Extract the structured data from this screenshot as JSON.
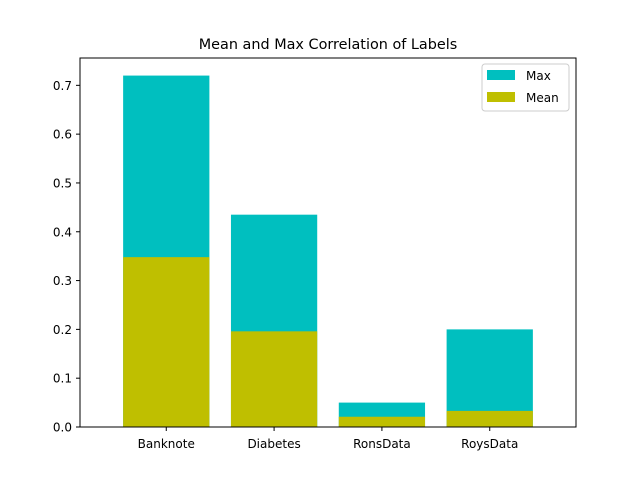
{
  "chart_data": {
    "type": "bar",
    "title": "Mean and Max Correlation of Labels",
    "xlabel": "",
    "ylabel": "",
    "ylim": [
      0,
      0.756
    ],
    "yticks": [
      0.0,
      0.1,
      0.2,
      0.3,
      0.4,
      0.5,
      0.6,
      0.7
    ],
    "ytick_labels": [
      "0.0",
      "0.1",
      "0.2",
      "0.3",
      "0.4",
      "0.5",
      "0.6",
      "0.7"
    ],
    "categories": [
      "Banknote",
      "Diabetes",
      "RonsData",
      "RoysData"
    ],
    "series": [
      {
        "name": "Max",
        "color": "#00bfbf",
        "values": [
          0.72,
          0.435,
          0.05,
          0.2
        ]
      },
      {
        "name": "Mean",
        "color": "#bfbf00",
        "values": [
          0.348,
          0.196,
          0.021,
          0.033
        ]
      }
    ],
    "grid": false,
    "legend": "top-right"
  }
}
